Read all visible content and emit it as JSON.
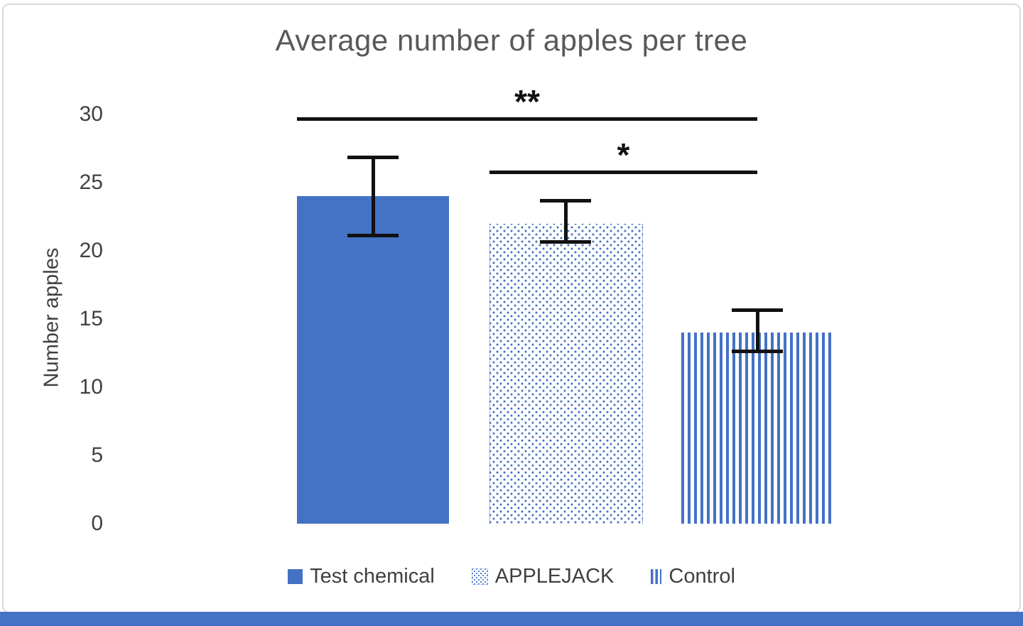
{
  "page": {
    "bottom_strip_color": "#4472C4",
    "card_border_color": "#d9d9d9"
  },
  "chart_data": {
    "type": "bar",
    "title": "Average number of apples per tree",
    "ylabel": "Number apples",
    "xlabel": "",
    "ylim": [
      0,
      30
    ],
    "yticks": [
      30,
      25,
      20,
      15,
      10,
      5,
      0
    ],
    "categories": [
      "Test chemical",
      "APPLEJACK",
      "Control"
    ],
    "values": [
      24,
      22,
      14
    ],
    "error_bars": [
      {
        "low": 21,
        "high": 27
      },
      {
        "low": 20.5,
        "high": 23.8
      },
      {
        "low": 12.5,
        "high": 15.8
      }
    ],
    "significance": [
      {
        "from": 0,
        "to": 2,
        "label": "**",
        "y": 29.8
      },
      {
        "from": 1,
        "to": 2,
        "label": "*",
        "y": 25.9
      }
    ],
    "legend": [
      {
        "label": "Test chemical",
        "pattern": "solid"
      },
      {
        "label": "APPLEJACK",
        "pattern": "dots"
      },
      {
        "label": "Control",
        "pattern": "vertical-stripes"
      }
    ],
    "bar_color": "#4472C4",
    "error_bar_color": "#111111",
    "grid": false,
    "legend_position": "bottom"
  }
}
